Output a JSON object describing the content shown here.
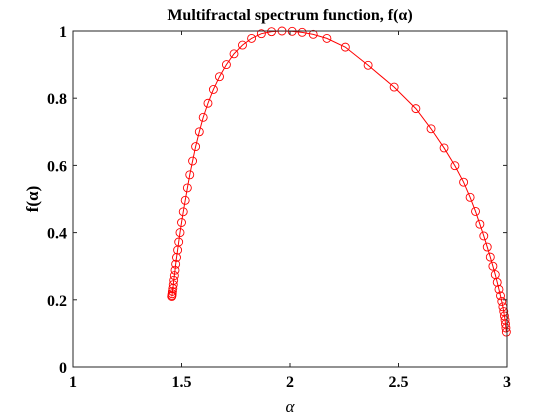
{
  "chart_data": {
    "type": "line",
    "title": "Multifractal spectrum function, f(α)",
    "xlabel": "α",
    "ylabel": "f(α)",
    "xlim": [
      1,
      3
    ],
    "ylim": [
      0,
      1
    ],
    "xticks": [
      1,
      1.5,
      2,
      2.5,
      3
    ],
    "xtick_labels": [
      "1",
      "1.5",
      "2",
      "2.5",
      "3"
    ],
    "yticks": [
      0,
      0.2,
      0.4,
      0.6,
      0.8,
      1
    ],
    "ytick_labels": [
      "0",
      "0.2",
      "0.4",
      "0.6",
      "0.8",
      "1"
    ],
    "grid": false,
    "series": [
      {
        "color": "#ff0000",
        "marker": "circle",
        "x": [
          1.455,
          1.456,
          1.457,
          1.458,
          1.46,
          1.462,
          1.464,
          1.467,
          1.47,
          1.473,
          1.477,
          1.482,
          1.487,
          1.493,
          1.5,
          1.508,
          1.517,
          1.527,
          1.538,
          1.551,
          1.565,
          1.582,
          1.6,
          1.622,
          1.647,
          1.675,
          1.707,
          1.742,
          1.781,
          1.823,
          1.868,
          1.915,
          1.963,
          2.01,
          2.056,
          2.107,
          2.17,
          2.255,
          2.36,
          2.48,
          2.58,
          2.65,
          2.71,
          2.76,
          2.8,
          2.83,
          2.855,
          2.875,
          2.893,
          2.909,
          2.923,
          2.935,
          2.946,
          2.955,
          2.963,
          2.97,
          2.976,
          2.981,
          2.985,
          2.988,
          2.991,
          2.993,
          2.995,
          2.997
        ],
        "y": [
          0.21,
          0.213,
          0.218,
          0.225,
          0.234,
          0.245,
          0.258,
          0.272,
          0.288,
          0.306,
          0.326,
          0.348,
          0.372,
          0.4,
          0.43,
          0.462,
          0.496,
          0.533,
          0.572,
          0.613,
          0.656,
          0.7,
          0.743,
          0.785,
          0.826,
          0.864,
          0.9,
          0.932,
          0.958,
          0.978,
          0.992,
          0.998,
          1.0,
          0.999,
          0.996,
          0.99,
          0.978,
          0.952,
          0.898,
          0.833,
          0.769,
          0.709,
          0.652,
          0.599,
          0.55,
          0.505,
          0.463,
          0.425,
          0.39,
          0.357,
          0.327,
          0.3,
          0.275,
          0.252,
          0.231,
          0.212,
          0.195,
          0.179,
          0.165,
          0.152,
          0.14,
          0.128,
          0.116,
          0.104
        ]
      }
    ]
  }
}
